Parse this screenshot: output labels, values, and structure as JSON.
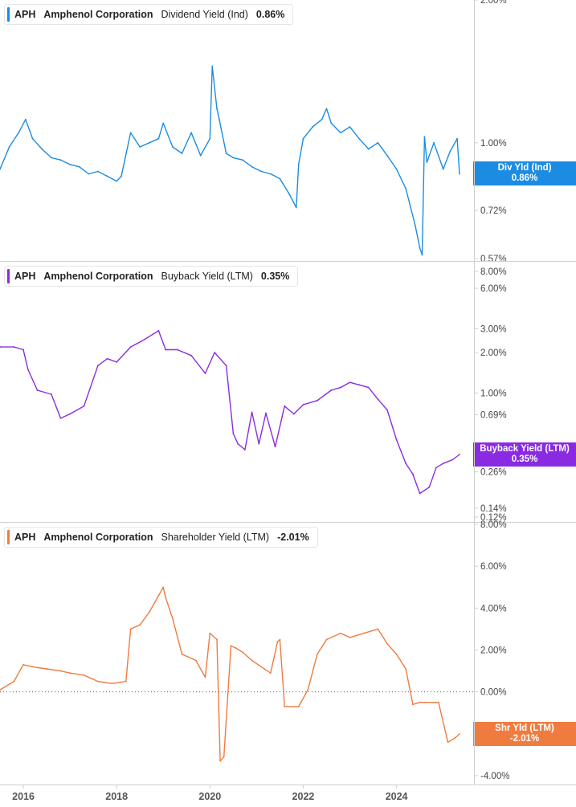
{
  "colors": {
    "div": "#1c8ce3",
    "buyback": "#8a2be2",
    "shr": "#f07b3f",
    "axis": "#cfcfcf",
    "text": "#444444"
  },
  "panels": [
    {
      "id": "div",
      "legend": {
        "ticker": "APH",
        "company": "Amphenol Corporation",
        "metric": "Dividend Yield (Ind)",
        "value": "0.86%"
      },
      "badge": {
        "line1": "Div Yld (Ind)",
        "line2": "0.86%",
        "value": 0.86
      },
      "ticks": [
        {
          "label": "2.00%",
          "value": 2.0
        },
        {
          "label": "1.00%",
          "value": 1.0
        },
        {
          "label": "0.8",
          "value": 0.86
        },
        {
          "label": "0.72%",
          "value": 0.72
        },
        {
          "label": "0.57%",
          "value": 0.57
        }
      ]
    },
    {
      "id": "buyback",
      "legend": {
        "ticker": "APH",
        "company": "Amphenol Corporation",
        "metric": "Buyback Yield (LTM)",
        "value": "0.35%"
      },
      "badge": {
        "line1": "Buyback Yield (LTM)",
        "line2": "0.35%",
        "value": 0.35
      },
      "ticks": [
        {
          "label": "8.00%",
          "value": 8.0
        },
        {
          "label": "6.00%",
          "value": 6.0
        },
        {
          "label": "3.00%",
          "value": 3.0
        },
        {
          "label": "2.00%",
          "value": 2.0
        },
        {
          "label": "1.00%",
          "value": 1.0
        },
        {
          "label": "0.69%",
          "value": 0.69
        },
        {
          "label": "0.26%",
          "value": 0.26
        },
        {
          "label": "0.14%",
          "value": 0.14
        },
        {
          "label": "0.12%",
          "value": 0.12
        }
      ]
    },
    {
      "id": "shr",
      "legend": {
        "ticker": "APH",
        "company": "Amphenol Corporation",
        "metric": "Shareholder Yield (LTM)",
        "value": "-2.01%"
      },
      "badge": {
        "line1": "Shr Yld (LTM)",
        "line2": "-2.01%",
        "value": -2.01
      },
      "ticks": [
        {
          "label": "8.00%",
          "value": 8.0
        },
        {
          "label": "6.00%",
          "value": 6.0
        },
        {
          "label": "4.00%",
          "value": 4.0
        },
        {
          "label": "2.00%",
          "value": 2.0
        },
        {
          "label": "0.00%",
          "value": 0.0
        },
        {
          "label": "-2.",
          "value": -2.01
        },
        {
          "label": "-4.00%",
          "value": -4.0
        }
      ]
    }
  ],
  "x_axis": {
    "ticks": [
      {
        "label": "2016",
        "year": 2016
      },
      {
        "label": "2018",
        "year": 2018
      },
      {
        "label": "2020",
        "year": 2020
      },
      {
        "label": "2022",
        "year": 2022
      },
      {
        "label": "2024",
        "year": 2024
      }
    ]
  },
  "chart_data": [
    {
      "type": "line",
      "scale": "log",
      "ylim": [
        0.57,
        2.0
      ],
      "series": [
        {
          "name": "Dividend Yield (Ind)",
          "x": [
            2015.5,
            2015.7,
            2015.9,
            2016.05,
            2016.2,
            2016.4,
            2016.6,
            2016.8,
            2017.0,
            2017.2,
            2017.4,
            2017.6,
            2017.8,
            2018.0,
            2018.1,
            2018.3,
            2018.5,
            2018.7,
            2018.9,
            2019.0,
            2019.2,
            2019.4,
            2019.6,
            2019.8,
            2020.0,
            2020.05,
            2020.15,
            2020.2,
            2020.35,
            2020.5,
            2020.7,
            2020.9,
            2021.1,
            2021.3,
            2021.5,
            2021.7,
            2021.85,
            2021.9,
            2022.0,
            2022.2,
            2022.4,
            2022.5,
            2022.6,
            2022.8,
            2023.0,
            2023.2,
            2023.4,
            2023.6,
            2023.8,
            2024.0,
            2024.2,
            2024.4,
            2024.5,
            2024.55,
            2024.6,
            2024.65,
            2024.8,
            2025.0,
            2025.15,
            2025.3,
            2025.35
          ],
          "values": [
            0.88,
            0.98,
            1.05,
            1.12,
            1.02,
            0.97,
            0.93,
            0.92,
            0.9,
            0.89,
            0.86,
            0.87,
            0.85,
            0.83,
            0.85,
            1.05,
            0.98,
            1.0,
            1.02,
            1.1,
            0.98,
            0.95,
            1.05,
            0.94,
            1.02,
            1.45,
            1.18,
            1.12,
            0.95,
            0.93,
            0.92,
            0.89,
            0.87,
            0.86,
            0.84,
            0.78,
            0.73,
            0.9,
            1.02,
            1.08,
            1.12,
            1.18,
            1.1,
            1.05,
            1.08,
            1.02,
            0.97,
            1.0,
            0.94,
            0.88,
            0.8,
            0.67,
            0.6,
            0.58,
            1.03,
            0.91,
            1.0,
            0.88,
            0.96,
            1.02,
            0.86
          ]
        }
      ]
    },
    {
      "type": "line",
      "scale": "log",
      "ylim": [
        0.12,
        8.0
      ],
      "series": [
        {
          "name": "Buyback Yield (LTM)",
          "x": [
            2015.5,
            2015.8,
            2016.0,
            2016.1,
            2016.3,
            2016.6,
            2016.8,
            2017.0,
            2017.3,
            2017.6,
            2017.8,
            2018.0,
            2018.3,
            2018.6,
            2018.9,
            2019.05,
            2019.3,
            2019.6,
            2019.9,
            2020.1,
            2020.35,
            2020.5,
            2020.6,
            2020.75,
            2020.9,
            2021.05,
            2021.2,
            2021.4,
            2021.6,
            2021.8,
            2022.0,
            2022.3,
            2022.6,
            2022.8,
            2023.0,
            2023.2,
            2023.4,
            2023.6,
            2023.8,
            2024.0,
            2024.2,
            2024.35,
            2024.5,
            2024.7,
            2024.85,
            2025.0,
            2025.2,
            2025.35
          ],
          "values": [
            2.2,
            2.2,
            2.1,
            1.5,
            1.05,
            0.98,
            0.65,
            0.7,
            0.8,
            1.6,
            1.8,
            1.7,
            2.2,
            2.5,
            2.9,
            2.1,
            2.1,
            1.9,
            1.4,
            2.0,
            1.6,
            0.5,
            0.42,
            0.38,
            0.72,
            0.42,
            0.71,
            0.4,
            0.8,
            0.7,
            0.82,
            0.88,
            1.05,
            1.1,
            1.2,
            1.15,
            1.1,
            0.9,
            0.75,
            0.45,
            0.3,
            0.25,
            0.18,
            0.2,
            0.28,
            0.3,
            0.32,
            0.35
          ]
        }
      ]
    },
    {
      "type": "line",
      "scale": "linear",
      "ylim": [
        -4.0,
        8.0
      ],
      "series": [
        {
          "name": "Shareholder Yield (LTM)",
          "x": [
            2015.5,
            2015.8,
            2016.0,
            2016.2,
            2016.5,
            2016.8,
            2017.0,
            2017.3,
            2017.6,
            2017.9,
            2018.2,
            2018.3,
            2018.5,
            2018.7,
            2018.9,
            2019.0,
            2019.05,
            2019.2,
            2019.4,
            2019.7,
            2019.9,
            2020.0,
            2020.15,
            2020.22,
            2020.3,
            2020.45,
            2020.55,
            2020.7,
            2020.9,
            2021.1,
            2021.3,
            2021.45,
            2021.5,
            2021.6,
            2021.9,
            2022.1,
            2022.3,
            2022.5,
            2022.8,
            2023.0,
            2023.3,
            2023.6,
            2023.8,
            2024.0,
            2024.2,
            2024.35,
            2024.5,
            2024.6,
            2024.9,
            2025.1,
            2025.25,
            2025.35
          ],
          "values": [
            0.1,
            0.5,
            1.3,
            1.2,
            1.1,
            1.0,
            0.9,
            0.8,
            0.5,
            0.4,
            0.5,
            3.0,
            3.2,
            3.8,
            4.6,
            5.0,
            4.5,
            3.5,
            1.8,
            1.5,
            0.7,
            2.8,
            2.5,
            -3.3,
            -3.1,
            2.2,
            2.1,
            1.9,
            1.5,
            1.2,
            0.9,
            2.4,
            2.5,
            -0.7,
            -0.7,
            0.1,
            1.8,
            2.5,
            2.8,
            2.6,
            2.8,
            3.0,
            2.3,
            1.8,
            1.1,
            -0.6,
            -0.5,
            -0.5,
            -0.5,
            -2.4,
            -2.2,
            -2.01
          ]
        }
      ]
    }
  ]
}
